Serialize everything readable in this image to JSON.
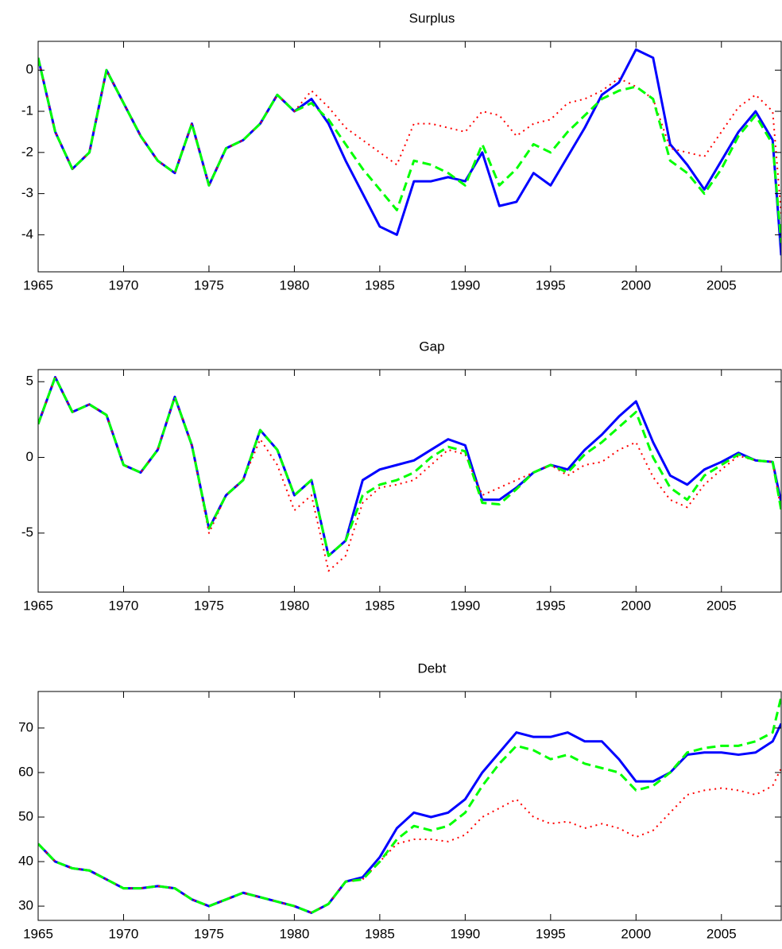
{
  "chart_data": [
    {
      "type": "line",
      "title": "Surplus",
      "x": [
        1965,
        1966,
        1967,
        1968,
        1969,
        1970,
        1971,
        1972,
        1973,
        1974,
        1975,
        1976,
        1977,
        1978,
        1979,
        1980,
        1981,
        1982,
        1983,
        1984,
        1985,
        1986,
        1987,
        1988,
        1989,
        1990,
        1991,
        1992,
        1993,
        1994,
        1995,
        1996,
        1997,
        1998,
        1999,
        2000,
        2001,
        2002,
        2003,
        2004,
        2005,
        2006,
        2007,
        2008,
        2008.5
      ],
      "series": [
        {
          "color": "#0000ff",
          "style": "solid",
          "values": [
            0.3,
            -1.5,
            -2.4,
            -2.0,
            0.0,
            -0.8,
            -1.6,
            -2.2,
            -2.5,
            -1.3,
            -2.8,
            -1.9,
            -1.7,
            -1.3,
            -0.6,
            -1.0,
            -0.7,
            -1.3,
            -2.2,
            -3.0,
            -3.8,
            -4.0,
            -2.7,
            -2.7,
            -2.6,
            -2.7,
            -2.0,
            -3.3,
            -3.2,
            -2.5,
            -2.8,
            -2.1,
            -1.4,
            -0.6,
            -0.3,
            0.5,
            0.3,
            -1.8,
            -2.3,
            -2.9,
            -2.2,
            -1.5,
            -1.0,
            -1.7,
            -4.5
          ]
        },
        {
          "color": "#ff0000",
          "style": "dotted",
          "values": [
            0.3,
            -1.5,
            -2.4,
            -2.0,
            0.0,
            -0.8,
            -1.6,
            -2.2,
            -2.5,
            -1.3,
            -2.8,
            -1.9,
            -1.7,
            -1.3,
            -0.6,
            -1.0,
            -0.5,
            -0.9,
            -1.4,
            -1.7,
            -2.0,
            -2.3,
            -1.3,
            -1.3,
            -1.4,
            -1.5,
            -1.0,
            -1.1,
            -1.6,
            -1.3,
            -1.2,
            -0.8,
            -0.7,
            -0.5,
            -0.2,
            -0.4,
            -0.7,
            -1.9,
            -2.0,
            -2.1,
            -1.5,
            -0.9,
            -0.6,
            -1.0,
            -3.5
          ]
        },
        {
          "color": "#00ff00",
          "style": "dashed",
          "values": [
            0.3,
            -1.5,
            -2.4,
            -2.0,
            0.0,
            -0.8,
            -1.6,
            -2.2,
            -2.5,
            -1.3,
            -2.8,
            -1.9,
            -1.7,
            -1.3,
            -0.6,
            -1.0,
            -0.8,
            -1.2,
            -1.8,
            -2.4,
            -2.9,
            -3.4,
            -2.2,
            -2.3,
            -2.5,
            -2.8,
            -1.8,
            -2.8,
            -2.4,
            -1.8,
            -2.0,
            -1.5,
            -1.1,
            -0.7,
            -0.5,
            -0.4,
            -0.7,
            -2.2,
            -2.5,
            -3.0,
            -2.4,
            -1.6,
            -1.1,
            -1.8,
            -4.2
          ]
        }
      ],
      "xlim": [
        1965,
        2008.5
      ],
      "ylim": [
        -4.9,
        0.7
      ],
      "xticks": [
        1965,
        1970,
        1975,
        1980,
        1985,
        1990,
        1995,
        2000,
        2005
      ],
      "yticks": [
        -4,
        -3,
        -2,
        -1,
        0
      ],
      "grid": false
    },
    {
      "type": "line",
      "title": "Gap",
      "x": [
        1965,
        1966,
        1967,
        1968,
        1969,
        1970,
        1971,
        1972,
        1973,
        1974,
        1975,
        1976,
        1977,
        1978,
        1979,
        1980,
        1981,
        1982,
        1983,
        1984,
        1985,
        1986,
        1987,
        1988,
        1989,
        1990,
        1991,
        1992,
        1993,
        1994,
        1995,
        1996,
        1997,
        1998,
        1999,
        2000,
        2001,
        2002,
        2003,
        2004,
        2005,
        2006,
        2007,
        2008,
        2008.5
      ],
      "series": [
        {
          "color": "#0000ff",
          "style": "solid",
          "values": [
            2.2,
            5.3,
            3.0,
            3.5,
            2.8,
            -0.5,
            -1.0,
            0.5,
            4.0,
            0.8,
            -4.7,
            -2.5,
            -1.5,
            1.8,
            0.5,
            -2.5,
            -1.5,
            -6.5,
            -5.5,
            -1.5,
            -0.8,
            -0.5,
            -0.2,
            0.5,
            1.2,
            0.8,
            -2.8,
            -2.8,
            -2.0,
            -1.0,
            -0.5,
            -0.8,
            0.5,
            1.5,
            2.7,
            3.7,
            1.0,
            -1.2,
            -1.8,
            -0.8,
            -0.3,
            0.3,
            -0.2,
            -0.3,
            -3.0
          ]
        },
        {
          "color": "#ff0000",
          "style": "dotted",
          "values": [
            2.2,
            5.3,
            3.0,
            3.5,
            2.8,
            -0.5,
            -1.0,
            0.5,
            4.0,
            0.8,
            -5.0,
            -2.5,
            -1.5,
            1.2,
            -0.5,
            -3.5,
            -2.5,
            -7.5,
            -6.5,
            -3.0,
            -2.0,
            -1.8,
            -1.5,
            -0.5,
            0.5,
            0.2,
            -2.5,
            -2.0,
            -1.5,
            -1.0,
            -0.5,
            -1.2,
            -0.5,
            -0.3,
            0.5,
            1.0,
            -1.3,
            -2.8,
            -3.3,
            -1.8,
            -0.8,
            0.1,
            -0.2,
            -0.3,
            -3.5
          ]
        },
        {
          "color": "#00ff00",
          "style": "dashed",
          "values": [
            2.2,
            5.3,
            3.0,
            3.5,
            2.8,
            -0.5,
            -1.0,
            0.5,
            4.0,
            0.8,
            -4.7,
            -2.5,
            -1.5,
            1.8,
            0.5,
            -2.5,
            -1.5,
            -6.5,
            -5.5,
            -2.5,
            -1.8,
            -1.5,
            -1.0,
            0.0,
            0.7,
            0.4,
            -3.0,
            -3.1,
            -2.1,
            -1.0,
            -0.5,
            -1.0,
            0.2,
            1.0,
            2.0,
            3.0,
            0.0,
            -2.0,
            -2.8,
            -1.2,
            -0.5,
            0.2,
            -0.2,
            -0.3,
            -3.5
          ]
        }
      ],
      "xlim": [
        1965,
        2008.5
      ],
      "ylim": [
        -8.9,
        5.8
      ],
      "xticks": [
        1965,
        1970,
        1975,
        1980,
        1985,
        1990,
        1995,
        2000,
        2005
      ],
      "yticks": [
        -5,
        0,
        5
      ],
      "grid": false
    },
    {
      "type": "line",
      "title": "Debt",
      "x": [
        1965,
        1966,
        1967,
        1968,
        1969,
        1970,
        1971,
        1972,
        1973,
        1974,
        1975,
        1976,
        1977,
        1978,
        1979,
        1980,
        1981,
        1982,
        1983,
        1984,
        1985,
        1986,
        1987,
        1988,
        1989,
        1990,
        1991,
        1992,
        1993,
        1994,
        1995,
        1996,
        1997,
        1998,
        1999,
        2000,
        2001,
        2002,
        2003,
        2004,
        2005,
        2006,
        2007,
        2008,
        2008.5
      ],
      "series": [
        {
          "color": "#0000ff",
          "style": "solid",
          "values": [
            44,
            40,
            38.5,
            38,
            36,
            34,
            34,
            34.5,
            34,
            31.5,
            30,
            31.5,
            33,
            32,
            31,
            30,
            28.5,
            30.5,
            35.5,
            36.5,
            41,
            47.5,
            51,
            50,
            51,
            54,
            60,
            64.5,
            69,
            68,
            68,
            69,
            67,
            67,
            63,
            58,
            58,
            60,
            64,
            64.5,
            64.5,
            64,
            64.5,
            67,
            71
          ]
        },
        {
          "color": "#ff0000",
          "style": "dotted",
          "values": [
            44,
            40,
            38.5,
            38,
            36,
            34,
            34,
            34.5,
            34,
            31.5,
            30,
            31.5,
            33,
            32,
            31,
            30,
            28.5,
            30.5,
            35.5,
            36,
            40,
            44,
            45,
            45,
            44.5,
            46,
            50,
            52,
            54,
            50,
            48.5,
            49,
            47.5,
            48.5,
            47.5,
            45.5,
            47,
            51,
            55,
            56,
            56.5,
            56,
            55,
            57,
            61
          ]
        },
        {
          "color": "#00ff00",
          "style": "dashed",
          "values": [
            44,
            40,
            38.5,
            38,
            36,
            34,
            34,
            34.5,
            34,
            31.5,
            30,
            31.5,
            33,
            32,
            31,
            30,
            28.5,
            30.5,
            35.5,
            36,
            40,
            45,
            48,
            47,
            48,
            51,
            57,
            62,
            66,
            65,
            63,
            64,
            62,
            61,
            60,
            56,
            57,
            60,
            64.5,
            65.5,
            66,
            66,
            67,
            69,
            77
          ]
        }
      ],
      "xlim": [
        1965,
        2008.5
      ],
      "ylim": [
        26.8,
        78.2
      ],
      "xticks": [
        1965,
        1970,
        1975,
        1980,
        1985,
        1990,
        1995,
        2000,
        2005
      ],
      "yticks": [
        30,
        40,
        50,
        60,
        70
      ],
      "grid": false
    }
  ]
}
